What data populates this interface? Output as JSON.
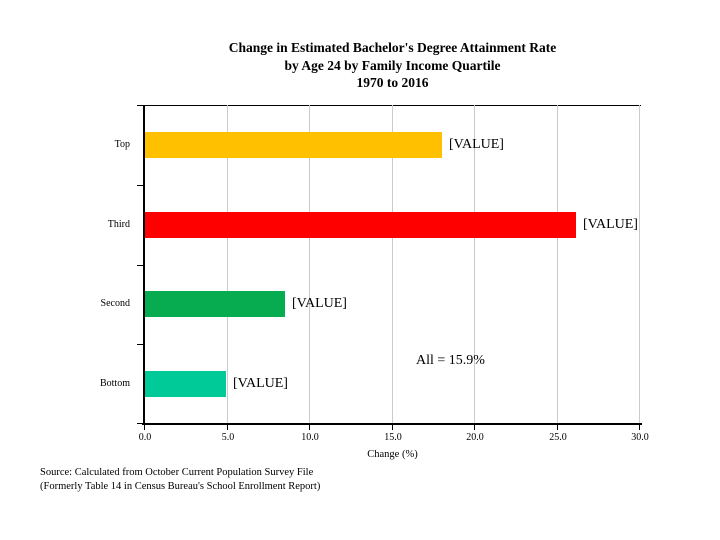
{
  "title": {
    "line1": "Change in Estimated Bachelor's Degree Attainment Rate",
    "line2": "by Age 24 by Family Income Quartile",
    "line3": "1970 to 2016"
  },
  "chart_data": {
    "type": "bar",
    "orientation": "horizontal",
    "categories": [
      "Top",
      "Third",
      "Second",
      "Bottom"
    ],
    "values": [
      18.0,
      26.1,
      8.5,
      4.9
    ],
    "bar_labels": [
      "[VALUE]",
      "[VALUE]",
      "[VALUE]",
      "[VALUE]"
    ],
    "bar_colors": [
      "#FFC000",
      "#FF0000",
      "#07AB50",
      "#00CB98"
    ],
    "annotation": "All = 15.9%",
    "xlabel": "Change (%)",
    "xlim": [
      0,
      30
    ],
    "xticks": [
      "0.0",
      "5.0",
      "10.0",
      "15.0",
      "20.0",
      "25.0",
      "30.0"
    ],
    "grid": true,
    "gridline_color": "#cacaca",
    "legend": "none"
  },
  "source": {
    "line1": "Source: Calculated from October Current Population Survey File",
    "line2": "(Formerly Table 14 in Census Bureau's School Enrollment Report)"
  }
}
